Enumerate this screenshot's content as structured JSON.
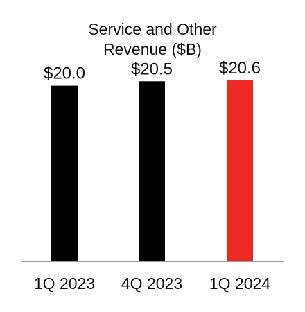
{
  "chart_data": {
    "type": "bar",
    "title_lines": [
      "Service and Other",
      "Revenue ($B)"
    ],
    "categories": [
      "1Q 2023",
      "4Q 2023",
      "1Q 2024"
    ],
    "values": [
      20.0,
      20.5,
      20.6
    ],
    "value_labels": [
      "$20.0",
      "$20.5",
      "$20.6"
    ],
    "bar_colors": [
      "#000000",
      "#000000",
      "#ee2a24"
    ],
    "axis_color": "#9a9a9a",
    "ylim": [
      0,
      20.6
    ],
    "grid": false,
    "legend": "none"
  }
}
